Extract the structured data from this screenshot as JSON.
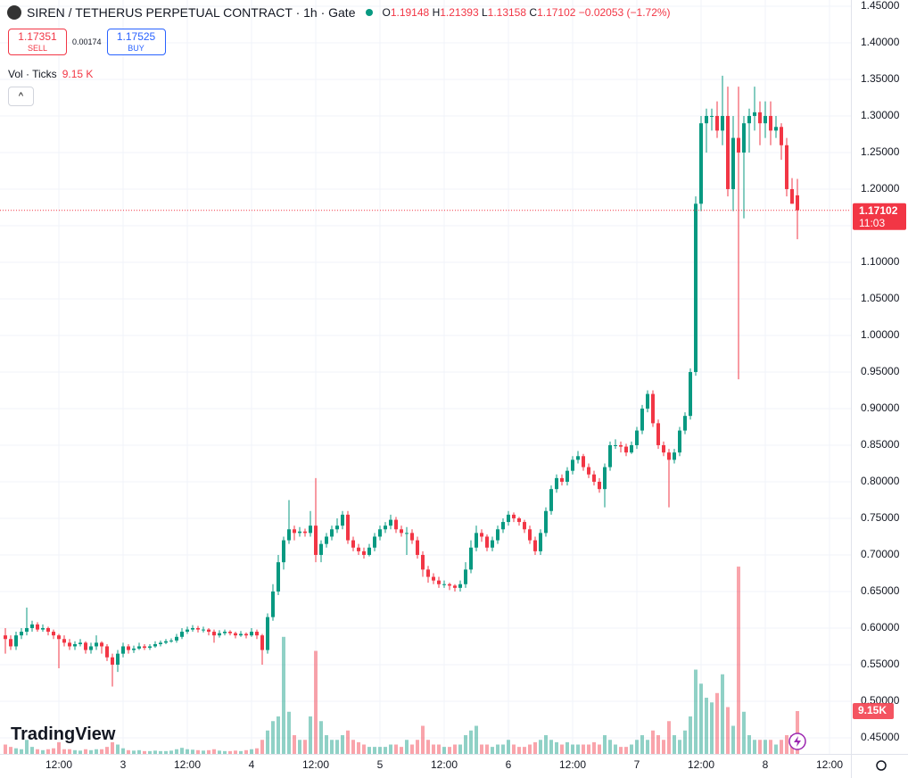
{
  "chart_data": {
    "type": "candlestick",
    "title": "SIREN / TETHERUS PERPETUAL CONTRACT · 1h · Gate",
    "ohlc_labels": [
      "O",
      "H",
      "L",
      "C"
    ],
    "change": "−0.02053 (−1.72%)",
    "sell_price": "1.17351",
    "sell_label": "SELL",
    "spread": "0.00174",
    "buy_price": "1.17525",
    "buy_label": "BUY",
    "volume_title": "Vol · Ticks",
    "volume_label": "9.15 K",
    "volume_badge": "9.15K",
    "countdown": "11:03",
    "watermark": "TradingView",
    "up_color": "#089981",
    "down_color": "#f23645",
    "ylim": [
      0.428,
      1.4585
    ],
    "vlim": [
      0,
      161
    ],
    "xlim": [
      -1,
      158
    ],
    "yticks": [
      {
        "value": 1.45,
        "label": "1.45000"
      },
      {
        "value": 1.4,
        "label": "1.40000"
      },
      {
        "value": 1.35,
        "label": "1.35000"
      },
      {
        "value": 1.3,
        "label": "1.30000"
      },
      {
        "value": 1.25,
        "label": "1.25000"
      },
      {
        "value": 1.2,
        "label": "1.20000"
      },
      {
        "value": 1.15,
        "label": "1.15000"
      },
      {
        "value": 1.1,
        "label": "1.10000"
      },
      {
        "value": 1.05,
        "label": "1.05000"
      },
      {
        "value": 1,
        "label": "1.00000"
      },
      {
        "value": 0.95,
        "label": "0.95000"
      },
      {
        "value": 0.9,
        "label": "0.90000"
      },
      {
        "value": 0.85,
        "label": "0.85000"
      },
      {
        "value": 0.8,
        "label": "0.80000"
      },
      {
        "value": 0.75,
        "label": "0.75000"
      },
      {
        "value": 0.7,
        "label": "0.70000"
      },
      {
        "value": 0.65,
        "label": "0.65000"
      },
      {
        "value": 0.6,
        "label": "0.60000"
      },
      {
        "value": 0.55,
        "label": "0.55000"
      },
      {
        "value": 0.5,
        "label": "0.50000"
      },
      {
        "value": 0.45,
        "label": "0.45000"
      }
    ],
    "xticks": [
      {
        "value": 10,
        "label": "12:00"
      },
      {
        "value": 22,
        "label": "3"
      },
      {
        "value": 34,
        "label": "12:00"
      },
      {
        "value": 46,
        "label": "4"
      },
      {
        "value": 58,
        "label": "12:00"
      },
      {
        "value": 70,
        "label": "5"
      },
      {
        "value": 82,
        "label": "12:00"
      },
      {
        "value": 94,
        "label": "6"
      },
      {
        "value": 106,
        "label": "12:00"
      },
      {
        "value": 118,
        "label": "7"
      },
      {
        "value": 130,
        "label": "12:00"
      },
      {
        "value": 142,
        "label": "8"
      },
      {
        "value": 154,
        "label": "12:00"
      }
    ],
    "grid": true,
    "candles": [
      [
        0.59,
        0.6,
        0.565,
        0.585,
        2
      ],
      [
        0.585,
        0.59,
        0.57,
        0.575,
        1.5
      ],
      [
        0.575,
        0.595,
        0.57,
        0.59,
        1.2
      ],
      [
        0.59,
        0.6,
        0.585,
        0.595,
        1
      ],
      [
        0.595,
        0.628,
        0.59,
        0.6,
        3
      ],
      [
        0.6,
        0.61,
        0.595,
        0.605,
        1.5
      ],
      [
        0.605,
        0.608,
        0.595,
        0.598,
        1
      ],
      [
        0.598,
        0.605,
        0.595,
        0.6,
        0.8
      ],
      [
        0.6,
        0.602,
        0.59,
        0.595,
        1
      ],
      [
        0.595,
        0.598,
        0.585,
        0.59,
        1.2
      ],
      [
        0.59,
        0.592,
        0.545,
        0.585,
        2.5
      ],
      [
        0.585,
        0.59,
        0.575,
        0.58,
        1
      ],
      [
        0.58,
        0.585,
        0.57,
        0.575,
        1
      ],
      [
        0.575,
        0.582,
        0.57,
        0.578,
        0.8
      ],
      [
        0.578,
        0.585,
        0.575,
        0.58,
        0.7
      ],
      [
        0.58,
        0.582,
        0.565,
        0.57,
        1
      ],
      [
        0.57,
        0.58,
        0.565,
        0.575,
        0.8
      ],
      [
        0.575,
        0.59,
        0.57,
        0.58,
        1
      ],
      [
        0.58,
        0.582,
        0.565,
        0.575,
        1
      ],
      [
        0.575,
        0.578,
        0.555,
        0.56,
        1.5
      ],
      [
        0.56,
        0.565,
        0.52,
        0.55,
        2.5
      ],
      [
        0.55,
        0.57,
        0.54,
        0.565,
        2
      ],
      [
        0.565,
        0.58,
        0.56,
        0.575,
        1.2
      ],
      [
        0.575,
        0.578,
        0.565,
        0.57,
        0.8
      ],
      [
        0.57,
        0.576,
        0.566,
        0.572,
        0.7
      ],
      [
        0.572,
        0.58,
        0.57,
        0.575,
        0.8
      ],
      [
        0.575,
        0.578,
        0.57,
        0.573,
        0.6
      ],
      [
        0.573,
        0.578,
        0.57,
        0.575,
        0.6
      ],
      [
        0.575,
        0.582,
        0.573,
        0.578,
        0.7
      ],
      [
        0.578,
        0.583,
        0.575,
        0.58,
        0.6
      ],
      [
        0.58,
        0.585,
        0.578,
        0.582,
        0.6
      ],
      [
        0.582,
        0.586,
        0.58,
        0.583,
        0.7
      ],
      [
        0.583,
        0.592,
        0.58,
        0.588,
        1
      ],
      [
        0.588,
        0.6,
        0.585,
        0.595,
        1.3
      ],
      [
        0.595,
        0.602,
        0.592,
        0.598,
        1
      ],
      [
        0.598,
        0.604,
        0.595,
        0.6,
        0.9
      ],
      [
        0.6,
        0.603,
        0.594,
        0.598,
        0.8
      ],
      [
        0.598,
        0.602,
        0.594,
        0.598,
        0.7
      ],
      [
        0.598,
        0.6,
        0.59,
        0.595,
        0.8
      ],
      [
        0.595,
        0.598,
        0.58,
        0.59,
        1
      ],
      [
        0.59,
        0.597,
        0.587,
        0.593,
        0.7
      ],
      [
        0.593,
        0.598,
        0.59,
        0.595,
        0.6
      ],
      [
        0.595,
        0.597,
        0.59,
        0.593,
        0.6
      ],
      [
        0.593,
        0.595,
        0.586,
        0.59,
        0.7
      ],
      [
        0.59,
        0.596,
        0.588,
        0.592,
        0.6
      ],
      [
        0.592,
        0.594,
        0.586,
        0.59,
        0.8
      ],
      [
        0.59,
        0.6,
        0.588,
        0.595,
        1
      ],
      [
        0.595,
        0.598,
        0.585,
        0.59,
        1.2
      ],
      [
        0.59,
        0.592,
        0.55,
        0.57,
        3
      ],
      [
        0.57,
        0.62,
        0.565,
        0.615,
        5
      ],
      [
        0.615,
        0.66,
        0.61,
        0.65,
        7
      ],
      [
        0.65,
        0.7,
        0.645,
        0.69,
        8
      ],
      [
        0.69,
        0.725,
        0.68,
        0.72,
        25
      ],
      [
        0.72,
        0.775,
        0.715,
        0.735,
        9
      ],
      [
        0.735,
        0.74,
        0.72,
        0.73,
        4
      ],
      [
        0.73,
        0.738,
        0.725,
        0.732,
        3
      ],
      [
        0.732,
        0.736,
        0.725,
        0.73,
        3
      ],
      [
        0.73,
        0.76,
        0.725,
        0.74,
        8
      ],
      [
        0.74,
        0.805,
        0.69,
        0.7,
        22
      ],
      [
        0.7,
        0.72,
        0.69,
        0.715,
        7
      ],
      [
        0.715,
        0.73,
        0.71,
        0.725,
        4
      ],
      [
        0.725,
        0.74,
        0.72,
        0.735,
        3
      ],
      [
        0.735,
        0.75,
        0.73,
        0.74,
        3
      ],
      [
        0.74,
        0.76,
        0.735,
        0.755,
        4
      ],
      [
        0.755,
        0.76,
        0.715,
        0.72,
        5
      ],
      [
        0.72,
        0.725,
        0.705,
        0.71,
        3
      ],
      [
        0.71,
        0.715,
        0.7,
        0.705,
        2.5
      ],
      [
        0.705,
        0.71,
        0.695,
        0.7,
        2
      ],
      [
        0.7,
        0.715,
        0.698,
        0.71,
        1.5
      ],
      [
        0.71,
        0.73,
        0.705,
        0.725,
        1.5
      ],
      [
        0.725,
        0.74,
        0.72,
        0.735,
        1.5
      ],
      [
        0.735,
        0.745,
        0.73,
        0.74,
        1.5
      ],
      [
        0.74,
        0.755,
        0.735,
        0.748,
        2
      ],
      [
        0.748,
        0.752,
        0.73,
        0.735,
        2
      ],
      [
        0.735,
        0.74,
        0.725,
        0.73,
        1.5
      ],
      [
        0.73,
        0.738,
        0.7,
        0.73,
        3
      ],
      [
        0.73,
        0.735,
        0.715,
        0.72,
        2
      ],
      [
        0.72,
        0.725,
        0.695,
        0.7,
        3
      ],
      [
        0.7,
        0.705,
        0.67,
        0.68,
        6
      ],
      [
        0.68,
        0.685,
        0.662,
        0.67,
        3
      ],
      [
        0.67,
        0.675,
        0.66,
        0.665,
        2
      ],
      [
        0.665,
        0.67,
        0.655,
        0.66,
        2
      ],
      [
        0.66,
        0.665,
        0.655,
        0.66,
        1.5
      ],
      [
        0.66,
        0.662,
        0.652,
        0.658,
        1.5
      ],
      [
        0.658,
        0.66,
        0.65,
        0.655,
        2
      ],
      [
        0.655,
        0.665,
        0.65,
        0.66,
        2
      ],
      [
        0.66,
        0.69,
        0.655,
        0.68,
        4
      ],
      [
        0.68,
        0.72,
        0.675,
        0.71,
        5
      ],
      [
        0.71,
        0.74,
        0.705,
        0.73,
        6
      ],
      [
        0.73,
        0.735,
        0.718,
        0.725,
        2
      ],
      [
        0.725,
        0.728,
        0.705,
        0.71,
        2
      ],
      [
        0.71,
        0.725,
        0.705,
        0.72,
        1.5
      ],
      [
        0.72,
        0.74,
        0.715,
        0.735,
        2
      ],
      [
        0.735,
        0.75,
        0.73,
        0.745,
        2
      ],
      [
        0.745,
        0.76,
        0.74,
        0.755,
        3
      ],
      [
        0.755,
        0.758,
        0.745,
        0.75,
        2
      ],
      [
        0.75,
        0.752,
        0.74,
        0.745,
        1.5
      ],
      [
        0.745,
        0.748,
        0.73,
        0.735,
        1.5
      ],
      [
        0.735,
        0.74,
        0.715,
        0.72,
        2
      ],
      [
        0.72,
        0.725,
        0.7,
        0.705,
        2.5
      ],
      [
        0.705,
        0.735,
        0.7,
        0.73,
        3
      ],
      [
        0.73,
        0.765,
        0.725,
        0.76,
        4
      ],
      [
        0.76,
        0.795,
        0.755,
        0.79,
        3
      ],
      [
        0.79,
        0.81,
        0.785,
        0.805,
        2.5
      ],
      [
        0.805,
        0.81,
        0.795,
        0.8,
        2
      ],
      [
        0.8,
        0.82,
        0.795,
        0.815,
        2.5
      ],
      [
        0.815,
        0.835,
        0.81,
        0.83,
        2
      ],
      [
        0.83,
        0.842,
        0.825,
        0.835,
        2
      ],
      [
        0.835,
        0.838,
        0.815,
        0.82,
        2
      ],
      [
        0.82,
        0.825,
        0.805,
        0.81,
        2
      ],
      [
        0.81,
        0.815,
        0.795,
        0.8,
        2.5
      ],
      [
        0.8,
        0.805,
        0.785,
        0.79,
        2
      ],
      [
        0.79,
        0.825,
        0.765,
        0.82,
        4
      ],
      [
        0.82,
        0.855,
        0.815,
        0.85,
        3
      ],
      [
        0.85,
        0.858,
        0.845,
        0.85,
        2
      ],
      [
        0.85,
        0.855,
        0.84,
        0.848,
        1.5
      ],
      [
        0.848,
        0.852,
        0.835,
        0.84,
        1.5
      ],
      [
        0.84,
        0.855,
        0.838,
        0.85,
        2
      ],
      [
        0.85,
        0.875,
        0.845,
        0.87,
        3
      ],
      [
        0.87,
        0.905,
        0.865,
        0.9,
        4
      ],
      [
        0.9,
        0.925,
        0.895,
        0.92,
        3
      ],
      [
        0.92,
        0.925,
        0.875,
        0.88,
        5
      ],
      [
        0.88,
        0.885,
        0.845,
        0.85,
        4
      ],
      [
        0.85,
        0.855,
        0.835,
        0.84,
        3
      ],
      [
        0.84,
        0.845,
        0.765,
        0.83,
        7
      ],
      [
        0.83,
        0.845,
        0.825,
        0.84,
        4
      ],
      [
        0.84,
        0.875,
        0.835,
        0.87,
        3
      ],
      [
        0.87,
        0.895,
        0.865,
        0.89,
        5
      ],
      [
        0.89,
        0.955,
        0.885,
        0.95,
        8
      ],
      [
        0.95,
        1.19,
        0.945,
        1.18,
        18
      ],
      [
        1.18,
        1.3,
        1.17,
        1.29,
        15
      ],
      [
        1.29,
        1.31,
        1.25,
        1.3,
        12
      ],
      [
        1.3,
        1.31,
        1.28,
        1.3,
        11
      ],
      [
        1.3,
        1.32,
        1.27,
        1.28,
        13
      ],
      [
        1.28,
        1.355,
        1.26,
        1.3,
        17
      ],
      [
        1.3,
        1.34,
        1.19,
        1.2,
        10
      ],
      [
        1.2,
        1.3,
        1.17,
        1.27,
        6
      ],
      [
        1.27,
        1.34,
        0.94,
        1.25,
        40
      ],
      [
        1.25,
        1.3,
        1.16,
        1.29,
        9
      ],
      [
        1.29,
        1.31,
        1.25,
        1.3,
        4
      ],
      [
        1.3,
        1.34,
        1.28,
        1.305,
        3
      ],
      [
        1.305,
        1.32,
        1.26,
        1.29,
        3
      ],
      [
        1.29,
        1.32,
        1.27,
        1.3,
        3
      ],
      [
        1.3,
        1.32,
        1.26,
        1.28,
        3
      ],
      [
        1.28,
        1.3,
        1.27,
        1.285,
        2
      ],
      [
        1.285,
        1.29,
        1.24,
        1.26,
        3
      ],
      [
        1.26,
        1.27,
        1.19,
        1.2,
        4
      ],
      [
        1.2,
        1.215,
        1.18,
        1.18,
        4
      ],
      [
        1.19148,
        1.21393,
        1.13158,
        1.17102,
        9.15
      ]
    ]
  }
}
